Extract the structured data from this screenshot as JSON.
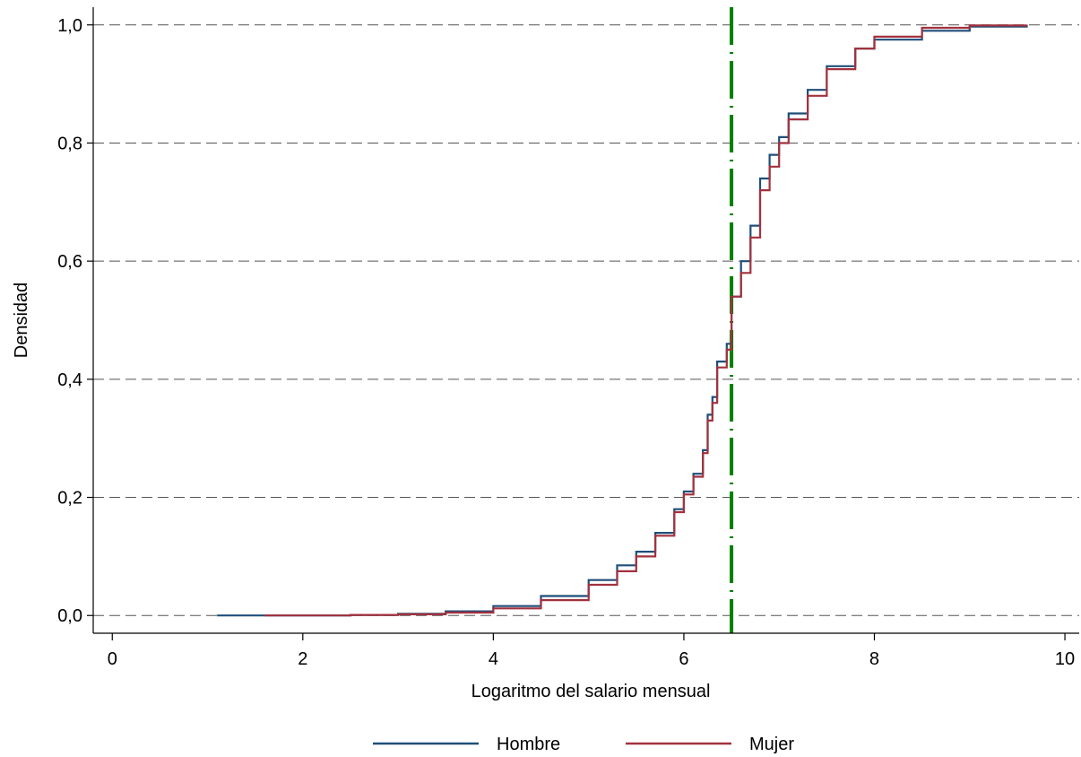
{
  "chart_data": {
    "type": "line",
    "title": "",
    "xlabel": "Logaritmo del salario mensual",
    "ylabel": "Densidad",
    "xlim": [
      -0.2,
      10.15
    ],
    "ylim": [
      -0.03,
      1.03
    ],
    "x_ticks": [
      0,
      2,
      4,
      6,
      8,
      10
    ],
    "x_tick_labels": [
      "0",
      "2",
      "4",
      "6",
      "8",
      "10"
    ],
    "y_ticks": [
      0,
      0.2,
      0.4,
      0.6,
      0.8,
      1.0
    ],
    "y_tick_labels": [
      "0,0",
      "0,2",
      "0,4",
      "0,6",
      "0,8",
      "1,0"
    ],
    "grid": "horizontal dashed",
    "legend_position": "bottom",
    "reference_line": {
      "x": 6.5,
      "color": "#008000",
      "style": "dash-dot"
    },
    "series": [
      {
        "name": "Hombre",
        "color": "#1f4e79",
        "points": [
          [
            1.1,
            0.0
          ],
          [
            2.0,
            0.0
          ],
          [
            2.5,
            0.001
          ],
          [
            3.0,
            0.003
          ],
          [
            3.5,
            0.007
          ],
          [
            4.0,
            0.016
          ],
          [
            4.5,
            0.033
          ],
          [
            5.0,
            0.06
          ],
          [
            5.3,
            0.085
          ],
          [
            5.5,
            0.108
          ],
          [
            5.7,
            0.14
          ],
          [
            5.9,
            0.18
          ],
          [
            6.0,
            0.21
          ],
          [
            6.1,
            0.24
          ],
          [
            6.2,
            0.28
          ],
          [
            6.25,
            0.34
          ],
          [
            6.3,
            0.37
          ],
          [
            6.35,
            0.43
          ],
          [
            6.45,
            0.46
          ],
          [
            6.5,
            0.54
          ],
          [
            6.6,
            0.6
          ],
          [
            6.7,
            0.66
          ],
          [
            6.8,
            0.74
          ],
          [
            6.9,
            0.78
          ],
          [
            7.0,
            0.81
          ],
          [
            7.1,
            0.85
          ],
          [
            7.3,
            0.89
          ],
          [
            7.5,
            0.93
          ],
          [
            7.8,
            0.96
          ],
          [
            8.0,
            0.975
          ],
          [
            8.5,
            0.99
          ],
          [
            9.0,
            0.997
          ],
          [
            9.6,
            1.0
          ]
        ]
      },
      {
        "name": "Mujer",
        "color": "#a3313e",
        "points": [
          [
            1.6,
            0.0
          ],
          [
            2.0,
            0.0
          ],
          [
            2.5,
            0.001
          ],
          [
            3.0,
            0.002
          ],
          [
            3.5,
            0.005
          ],
          [
            4.0,
            0.012
          ],
          [
            4.5,
            0.026
          ],
          [
            5.0,
            0.052
          ],
          [
            5.3,
            0.075
          ],
          [
            5.5,
            0.1
          ],
          [
            5.7,
            0.135
          ],
          [
            5.9,
            0.175
          ],
          [
            6.0,
            0.205
          ],
          [
            6.1,
            0.235
          ],
          [
            6.2,
            0.275
          ],
          [
            6.25,
            0.33
          ],
          [
            6.3,
            0.36
          ],
          [
            6.35,
            0.42
          ],
          [
            6.45,
            0.45
          ],
          [
            6.5,
            0.54
          ],
          [
            6.6,
            0.58
          ],
          [
            6.7,
            0.64
          ],
          [
            6.8,
            0.72
          ],
          [
            6.9,
            0.76
          ],
          [
            7.0,
            0.8
          ],
          [
            7.1,
            0.84
          ],
          [
            7.3,
            0.88
          ],
          [
            7.5,
            0.925
          ],
          [
            7.8,
            0.96
          ],
          [
            8.0,
            0.98
          ],
          [
            8.5,
            0.995
          ],
          [
            9.0,
            0.999
          ],
          [
            9.6,
            1.0
          ]
        ]
      }
    ]
  }
}
